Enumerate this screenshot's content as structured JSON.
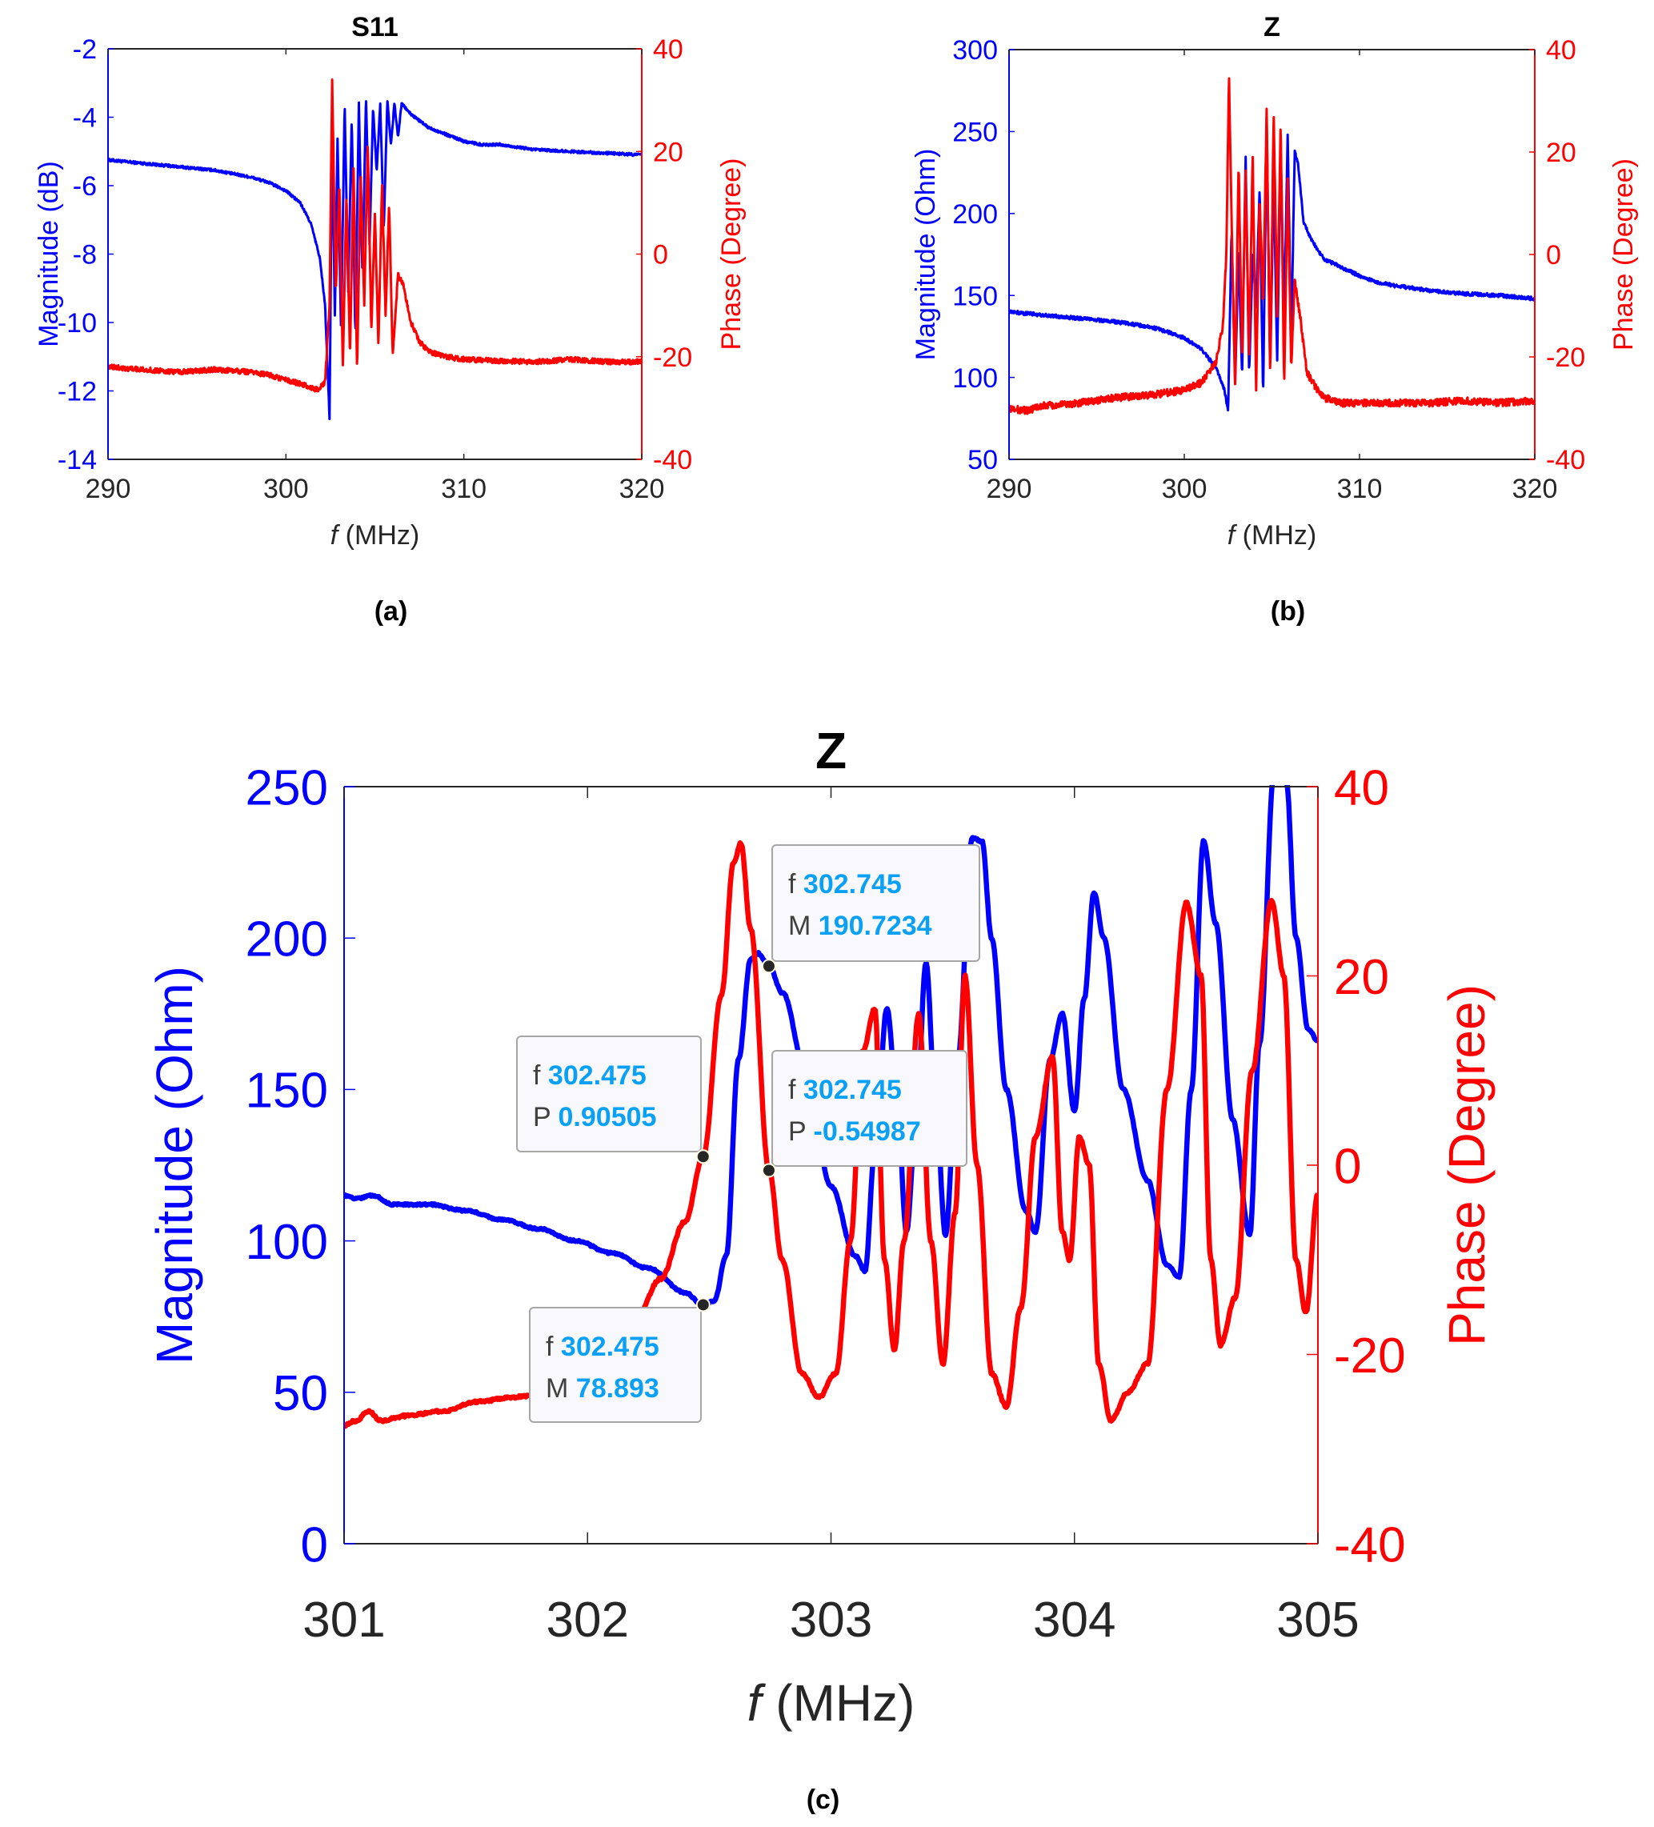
{
  "figure": {
    "panels": [
      "(a)",
      "(b)",
      "(c)"
    ]
  },
  "chart_data": [
    {
      "id": "a",
      "type": "line",
      "title": "S11",
      "panel_label": "(a)",
      "xlabel_italic": "f",
      "xlabel_rest": " (MHz)",
      "ylabel_left": "Magnitude (dB)",
      "ylabel_right": "Phase (Degree)",
      "xlim": [
        290,
        320
      ],
      "ylim_left": [
        -14,
        -2
      ],
      "ylim_right": [
        -40,
        40
      ],
      "xticks": [
        "290",
        "300",
        "310",
        "320"
      ],
      "xtick_values": [
        290,
        300,
        310,
        320
      ],
      "yticks_left": [
        "-14",
        "-12",
        "-10",
        "-8",
        "-6",
        "-4",
        "-2"
      ],
      "ytick_values_left": [
        -14,
        -12,
        -10,
        -8,
        -6,
        -4,
        -2
      ],
      "yticks_right": [
        "-40",
        "-20",
        "0",
        "20",
        "40"
      ],
      "ytick_values_right": [
        -40,
        -20,
        0,
        20,
        40
      ],
      "left_color": "#0000ff",
      "right_color": "#ff0000",
      "grid": false,
      "series": [
        {
          "name": "Magnitude",
          "axis": "left",
          "color": "#0000ff",
          "x": [
            290,
            292,
            294,
            296,
            298,
            299,
            300,
            300.8,
            301.4,
            301.9,
            302.2,
            302.45,
            302.6,
            302.75,
            302.9,
            303.1,
            303.3,
            303.5,
            303.7,
            303.9,
            304.1,
            304.3,
            304.5,
            304.7,
            304.9,
            305.1,
            305.3,
            305.5,
            305.7,
            305.9,
            306.1,
            306.3,
            306.5,
            307,
            307.5,
            308,
            309,
            310,
            311,
            312,
            314,
            316,
            318,
            320
          ],
          "y": [
            -5.25,
            -5.35,
            -5.45,
            -5.55,
            -5.75,
            -5.9,
            -6.15,
            -6.5,
            -7.1,
            -8.1,
            -9.5,
            -12.8,
            -4.3,
            -9.8,
            -4.6,
            -10.3,
            -3.6,
            -9.1,
            -4.0,
            -10.4,
            -3.6,
            -8.6,
            -3.4,
            -7.7,
            -3.7,
            -5.6,
            -3.6,
            -7.3,
            -3.5,
            -4.8,
            -3.6,
            -4.6,
            -3.6,
            -3.9,
            -4.1,
            -4.3,
            -4.5,
            -4.7,
            -4.8,
            -4.8,
            -4.95,
            -5.0,
            -5.05,
            -5.1
          ]
        },
        {
          "name": "Phase",
          "axis": "right",
          "color": "#ff0000",
          "x": [
            290,
            292,
            294,
            296,
            298,
            299,
            300,
            301,
            301.8,
            302.2,
            302.45,
            302.6,
            302.8,
            303.0,
            303.2,
            303.4,
            303.6,
            303.8,
            304.0,
            304.2,
            304.4,
            304.6,
            304.8,
            305.0,
            305.2,
            305.4,
            305.6,
            305.8,
            306.0,
            306.3,
            306.6,
            307,
            307.5,
            308,
            309,
            310,
            312,
            314,
            316,
            318,
            320
          ],
          "y": [
            -22,
            -22.5,
            -23,
            -22.5,
            -23,
            -23.5,
            -24.5,
            -25.5,
            -26.5,
            -25,
            -10,
            34,
            -8,
            14,
            -22,
            12,
            -20,
            17,
            -23,
            16,
            -10,
            22,
            -15,
            8,
            -18,
            14,
            -12,
            10,
            -20,
            -4,
            -6,
            -13,
            -17,
            -19,
            -20,
            -20.5,
            -20.8,
            -21,
            -20.5,
            -21,
            -21
          ]
        }
      ]
    },
    {
      "id": "b",
      "type": "line",
      "title": "Z",
      "panel_label": "(b)",
      "xlabel_italic": "f",
      "xlabel_rest": " (MHz)",
      "ylabel_left": "Magnitude (Ohm)",
      "ylabel_right": "Phase (Degree)",
      "xlim": [
        290,
        320
      ],
      "ylim_left": [
        50,
        300
      ],
      "ylim_right": [
        -40,
        40
      ],
      "xticks": [
        "290",
        "300",
        "310",
        "320"
      ],
      "xtick_values": [
        290,
        300,
        310,
        320
      ],
      "yticks_left": [
        "50",
        "100",
        "150",
        "200",
        "250",
        "300"
      ],
      "ytick_values_left": [
        50,
        100,
        150,
        200,
        250,
        300
      ],
      "yticks_right": [
        "-40",
        "-20",
        "0",
        "20",
        "40"
      ],
      "ytick_values_right": [
        -40,
        -20,
        0,
        20,
        40
      ],
      "left_color": "#0000ff",
      "right_color": "#ff0000",
      "grid": false,
      "series": [
        {
          "name": "Magnitude",
          "axis": "left",
          "color": "#0000ff",
          "x": [
            290,
            292,
            294,
            296,
            298,
            299,
            300,
            301,
            301.8,
            302.3,
            302.5,
            302.7,
            302.9,
            303.1,
            303.3,
            303.5,
            303.7,
            303.9,
            304.1,
            304.3,
            304.5,
            304.7,
            304.9,
            305.1,
            305.3,
            305.5,
            305.7,
            305.9,
            306.1,
            306.3,
            306.5,
            306.8,
            307.2,
            307.6,
            308,
            309,
            310,
            311,
            312,
            314,
            316,
            318,
            320
          ],
          "y": [
            140,
            138,
            136,
            134,
            131,
            128,
            124,
            117,
            106,
            92,
            79,
            190,
            96,
            178,
            100,
            235,
            101,
            176,
            143,
            215,
            88,
            258,
            102,
            225,
            110,
            240,
            135,
            248,
            120,
            238,
            230,
            195,
            185,
            178,
            172,
            167,
            162,
            158,
            156,
            153,
            151,
            150,
            148
          ]
        },
        {
          "name": "Phase",
          "axis": "right",
          "color": "#ff0000",
          "x": [
            290,
            291,
            292,
            294,
            296,
            298,
            300,
            301,
            301.8,
            302.2,
            302.4,
            302.55,
            302.75,
            302.9,
            303.1,
            303.3,
            303.5,
            303.7,
            303.9,
            304.1,
            304.3,
            304.5,
            304.7,
            304.9,
            305.1,
            305.3,
            305.5,
            305.7,
            305.9,
            306.1,
            306.3,
            306.6,
            307,
            307.5,
            308,
            309,
            310,
            312,
            314,
            316,
            318,
            320
          ],
          "y": [
            -30,
            -30.5,
            -29.5,
            -29,
            -28,
            -27.5,
            -26.5,
            -25,
            -21,
            -14,
            0,
            35,
            -2,
            -25,
            18,
            -20,
            16,
            -21,
            20,
            -26,
            11,
            -10,
            28,
            -24,
            28,
            -12,
            25,
            -26,
            15,
            -22,
            -5,
            -12,
            -23,
            -26,
            -28,
            -29,
            -29,
            -29,
            -29,
            -28.5,
            -29,
            -28.5
          ]
        }
      ]
    },
    {
      "id": "c",
      "type": "line",
      "title": "Z",
      "panel_label": "(c)",
      "xlabel_italic": "f",
      "xlabel_rest": " (MHz)",
      "ylabel_left": "Magnitude (Ohm)",
      "ylabel_right": "Phase (Degree)",
      "xlim": [
        301,
        305
      ],
      "ylim_left": [
        0,
        250
      ],
      "ylim_right": [
        -40,
        40
      ],
      "xticks": [
        "301",
        "302",
        "303",
        "304",
        "305"
      ],
      "xtick_values": [
        301,
        302,
        303,
        304,
        305
      ],
      "yticks_left": [
        "0",
        "50",
        "100",
        "150",
        "200",
        "250"
      ],
      "ytick_values_left": [
        0,
        50,
        100,
        150,
        200,
        250
      ],
      "yticks_right": [
        "-40",
        "-20",
        "0",
        "20",
        "40"
      ],
      "ytick_values_right": [
        -40,
        -20,
        0,
        20,
        40
      ],
      "left_color": "#0000ff",
      "right_color": "#ff0000",
      "grid": false,
      "series": [
        {
          "name": "Magnitude",
          "axis": "left",
          "color": "#0000ff",
          "x": [
            301.0,
            301.05,
            301.12,
            301.2,
            301.35,
            301.5,
            301.65,
            301.8,
            301.95,
            302.1,
            302.25,
            302.4,
            302.475,
            302.52,
            302.57,
            302.62,
            302.67,
            302.7,
            302.745,
            302.8,
            302.9,
            303.0,
            303.1,
            303.14,
            303.18,
            303.23,
            303.27,
            303.31,
            303.35,
            303.39,
            303.43,
            303.47,
            303.52,
            303.58,
            303.62,
            303.66,
            303.72,
            303.8,
            303.84,
            303.9,
            303.95,
            304.0,
            304.04,
            304.08,
            304.12,
            304.2,
            304.3,
            304.38,
            304.43,
            304.48,
            304.53,
            304.58,
            304.65,
            304.72,
            304.76,
            304.82,
            304.87,
            304.91,
            304.96,
            305.0
          ],
          "y": [
            115,
            114,
            115,
            112,
            112,
            110,
            107,
            104,
            100,
            96,
            91,
            83,
            78.893,
            80,
            95,
            160,
            193,
            195,
            190.7234,
            182,
            155,
            118,
            95,
            90,
            130,
            177,
            148,
            103,
            140,
            192,
            145,
            102,
            160,
            233,
            232,
            200,
            150,
            110,
            103,
            160,
            175,
            143,
            180,
            215,
            200,
            150,
            120,
            92,
            88,
            150,
            232,
            205,
            140,
            102,
            165,
            255,
            252,
            200,
            170,
            166
          ]
        },
        {
          "name": "Phase",
          "axis": "right",
          "color": "#ff0000",
          "x": [
            301.0,
            301.05,
            301.1,
            301.15,
            301.25,
            301.4,
            301.55,
            301.7,
            301.85,
            302.0,
            302.1,
            302.2,
            302.3,
            302.4,
            302.475,
            302.55,
            302.6,
            302.63,
            302.67,
            302.745,
            302.8,
            302.88,
            302.95,
            303.02,
            303.08,
            303.13,
            303.18,
            303.22,
            303.26,
            303.3,
            303.36,
            303.41,
            303.46,
            303.51,
            303.55,
            303.6,
            303.66,
            303.72,
            303.78,
            303.84,
            303.91,
            303.95,
            303.98,
            304.02,
            304.06,
            304.1,
            304.15,
            304.22,
            304.3,
            304.38,
            304.46,
            304.52,
            304.56,
            304.6,
            304.66,
            304.73,
            304.81,
            304.86,
            304.91,
            304.95,
            305.0
          ],
          "y": [
            -27.5,
            -27,
            -26,
            -27,
            -26.5,
            -26,
            -25,
            -24.5,
            -24,
            -22.5,
            -20,
            -16,
            -12,
            -6,
            0.90505,
            18,
            32,
            34,
            25,
            -0.54987,
            -10,
            -22,
            -24.5,
            -22,
            -8,
            12,
            16.5,
            -10,
            -19.5,
            -8,
            16,
            -8,
            -21,
            -5,
            20,
            0,
            -22,
            -25.5,
            -15,
            3,
            11.5,
            -7,
            -10,
            3,
            0,
            -21,
            -27,
            -24,
            -21,
            8,
            27.7,
            20,
            -10,
            -19,
            -14,
            10,
            28,
            20,
            -10,
            -15.6,
            -3
          ]
        }
      ],
      "datatips": [
        {
          "f_label": "f",
          "f_value": "302.475",
          "y_label": "P",
          "y_value": "0.90505",
          "series": "Phase",
          "x": 302.475,
          "y": 0.90505
        },
        {
          "f_label": "f",
          "f_value": "302.475",
          "y_label": "M",
          "y_value": "78.893",
          "series": "Magnitude",
          "x": 302.475,
          "y": 78.893
        },
        {
          "f_label": "f",
          "f_value": "302.745",
          "y_label": "M",
          "y_value": "190.7234",
          "series": "Magnitude",
          "x": 302.745,
          "y": 190.7234
        },
        {
          "f_label": "f",
          "f_value": "302.745",
          "y_label": "P",
          "y_value": "-0.54987",
          "series": "Phase",
          "x": 302.745,
          "y": -0.54987
        }
      ]
    }
  ]
}
